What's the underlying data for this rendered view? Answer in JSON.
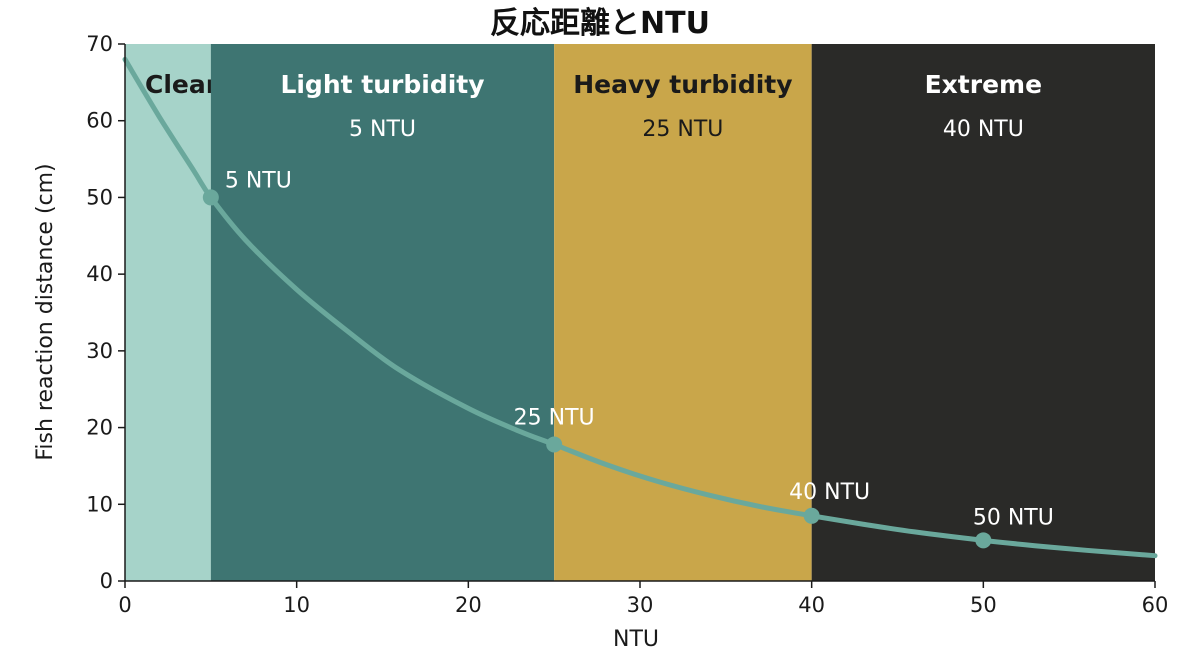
{
  "chart_data": {
    "type": "line",
    "title": "反応距離とNTU",
    "xlabel": "NTU",
    "ylabel": "Fish reaction distance (cm)",
    "xlim": [
      0,
      60
    ],
    "ylim": [
      0,
      70
    ],
    "xticks": [
      0,
      10,
      20,
      30,
      40,
      50,
      60
    ],
    "yticks": [
      0,
      10,
      20,
      30,
      40,
      50,
      60,
      70
    ],
    "grid": false,
    "zones": [
      {
        "name": "Clear",
        "ntu_label": "",
        "from": 0,
        "to": 5,
        "color": "#a6d3c9",
        "text_color": "#1a1a1a"
      },
      {
        "name": "Light turbidity",
        "ntu_label": "5 NTU",
        "from": 5,
        "to": 25,
        "color": "#3e7572",
        "text_color": "#ffffff"
      },
      {
        "name": "Heavy turbidity",
        "ntu_label": "25 NTU",
        "from": 25,
        "to": 40,
        "color": "#c9a64a",
        "text_color": "#1a1a1a"
      },
      {
        "name": "Extreme",
        "ntu_label": "40 NTU",
        "from": 40,
        "to": 60,
        "color": "#2a2a28",
        "text_color": "#ffffff"
      }
    ],
    "series": [
      {
        "color": "#6aa89c",
        "x": [
          0,
          2,
          4,
          5,
          7,
          10,
          13,
          16,
          20,
          23,
          25,
          28,
          31,
          34,
          37,
          40,
          43,
          46,
          50,
          53,
          56,
          60
        ],
        "y": [
          68,
          60.5,
          53.5,
          50,
          44.5,
          38,
          32.5,
          27.5,
          22.5,
          19.5,
          17.8,
          15.2,
          13,
          11.2,
          9.7,
          8.5,
          7.4,
          6.4,
          5.3,
          4.6,
          4,
          3.3
        ]
      }
    ],
    "points": [
      {
        "x": 5,
        "y": 50,
        "label": "5 NTU"
      },
      {
        "x": 25,
        "y": 17.8,
        "label": "25 NTU"
      },
      {
        "x": 40,
        "y": 8.5,
        "label": "40 NTU"
      },
      {
        "x": 50,
        "y": 5.3,
        "label": "50 NTU"
      }
    ]
  }
}
